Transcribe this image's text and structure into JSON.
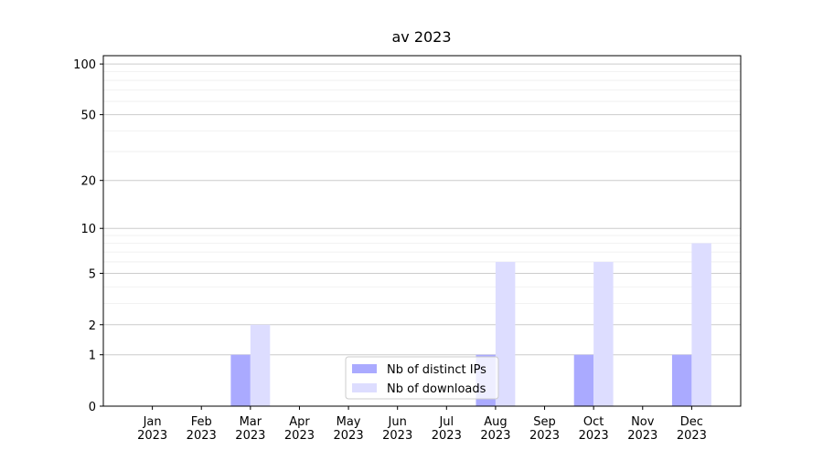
{
  "chart_data": {
    "type": "bar",
    "title": "av 2023",
    "categories": [
      "Jan 2023",
      "Feb 2023",
      "Mar 2023",
      "Apr 2023",
      "May 2023",
      "Jun 2023",
      "Jul 2023",
      "Aug 2023",
      "Sep 2023",
      "Oct 2023",
      "Nov 2023",
      "Dec 2023"
    ],
    "series": [
      {
        "name": "Nb of distinct IPs",
        "color": "#aaaaff",
        "values": [
          0,
          0,
          1,
          0,
          0,
          0,
          0,
          1,
          0,
          1,
          0,
          1
        ]
      },
      {
        "name": "Nb of downloads",
        "color": "#ddddff",
        "values": [
          0,
          0,
          2,
          0,
          0,
          0,
          0,
          6,
          0,
          6,
          0,
          8
        ]
      }
    ],
    "yscale": "log1p",
    "ylim": [
      0,
      112
    ],
    "yticks": [
      0,
      1,
      2,
      5,
      10,
      20,
      50,
      100
    ],
    "yminor": [
      3,
      4,
      6,
      7,
      8,
      9,
      30,
      40,
      60,
      70,
      80,
      90
    ],
    "grid": true,
    "legend": "lower center"
  }
}
